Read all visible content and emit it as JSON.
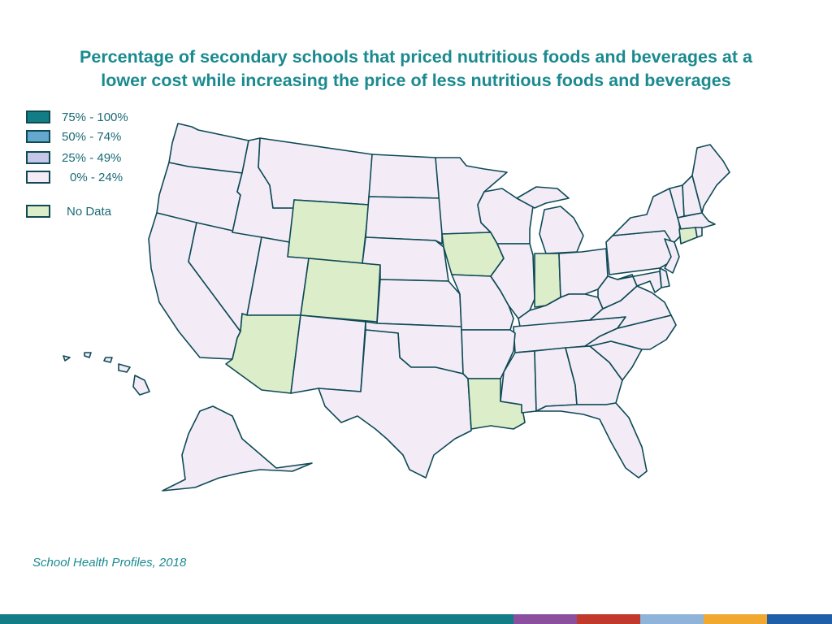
{
  "title": {
    "line1": "Percentage of secondary schools that priced nutritious foods and beverages at a",
    "line2": "lower cost while increasing the price of less nutritious foods and beverages"
  },
  "legend": [
    {
      "label": "75% - 100%",
      "color": "#127d85"
    },
    {
      "label": "50% - 74%",
      "color": "#65a8cf"
    },
    {
      "label": "25% - 49%",
      "color": "#c5c6e8"
    },
    {
      "label": "0% - 24%",
      "color": "#f3ecf7"
    },
    {
      "label": "No Data",
      "color": "#dcedc9"
    }
  ],
  "colors": {
    "low": "#f3ecf7",
    "nodata": "#dcedc9",
    "border": "#0e4a55",
    "title": "#1a8a8f"
  },
  "states": {
    "no_data": [
      "WY",
      "CO",
      "AZ",
      "IA",
      "IN",
      "LA",
      "CT"
    ],
    "range_0_24": [
      "WA",
      "OR",
      "CA",
      "NV",
      "ID",
      "MT",
      "UT",
      "NM",
      "ND",
      "SD",
      "NE",
      "KS",
      "OK",
      "TX",
      "MN",
      "MO",
      "AR",
      "WI",
      "IL",
      "MI",
      "OH",
      "KY",
      "TN",
      "MS",
      "AL",
      "GA",
      "FL",
      "SC",
      "NC",
      "VA",
      "WV",
      "PA",
      "NY",
      "VT",
      "NH",
      "ME",
      "MA",
      "RI",
      "NJ",
      "DE",
      "MD",
      "AK",
      "HI"
    ]
  },
  "source": "School Health Profiles, 2018",
  "footer_bar_colors": [
    "#127d85",
    "#8a4f9e",
    "#c0392b",
    "#8fb3d9",
    "#f0a830",
    "#1f5fa8"
  ]
}
